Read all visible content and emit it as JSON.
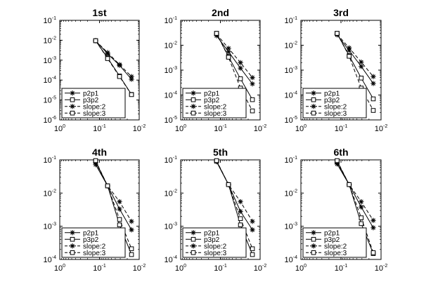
{
  "chart_data": [
    {
      "type": "line",
      "title": "1st",
      "xscale": "log",
      "yscale": "log",
      "xlim": [
        1,
        0.01
      ],
      "ylim": [
        1e-06,
        0.1
      ],
      "xticks": [
        {
          "base": "10",
          "exp": "0"
        },
        {
          "base": "10",
          "exp": "-1"
        },
        {
          "base": "10",
          "exp": "-2"
        }
      ],
      "yticks": [
        {
          "base": "10",
          "exp": "-6"
        },
        {
          "base": "10",
          "exp": "-5"
        },
        {
          "base": "10",
          "exp": "-4"
        },
        {
          "base": "10",
          "exp": "-3"
        },
        {
          "base": "10",
          "exp": "-2"
        },
        {
          "base": "10",
          "exp": "-1"
        }
      ],
      "legend_position": "bottom-left",
      "series": [
        {
          "name": "p2p1",
          "marker": "asterisk",
          "dash": "solid",
          "x": [
            0.125,
            0.0625,
            0.03125,
            0.015625
          ],
          "y": [
            0.0095,
            0.0021,
            0.00055,
            0.00011
          ]
        },
        {
          "name": "p3p2",
          "marker": "square",
          "dash": "solid",
          "x": [
            0.125,
            0.0625,
            0.03125,
            0.015625
          ],
          "y": [
            0.0095,
            0.0013,
            0.00016,
            1.9e-05
          ]
        },
        {
          "name": "slope:2",
          "marker": "asterisk",
          "dash": "dashed",
          "x": [
            0.125,
            0.0625,
            0.03125,
            0.015625
          ],
          "y": [
            0.0095,
            0.0024,
            0.0006,
            0.00015
          ]
        },
        {
          "name": "slope:3",
          "marker": "square",
          "dash": "dashed",
          "x": [
            0.125,
            0.0625,
            0.03125,
            0.015625
          ],
          "y": [
            0.0095,
            0.0012,
            0.00015,
            1.86e-05
          ]
        }
      ]
    },
    {
      "type": "line",
      "title": "2nd",
      "xscale": "log",
      "yscale": "log",
      "xlim": [
        1,
        0.01
      ],
      "ylim": [
        1e-05,
        0.1
      ],
      "xticks": [
        {
          "base": "10",
          "exp": "0"
        },
        {
          "base": "10",
          "exp": "-1"
        },
        {
          "base": "10",
          "exp": "-2"
        }
      ],
      "yticks": [
        {
          "base": "10",
          "exp": "-5"
        },
        {
          "base": "10",
          "exp": "-4"
        },
        {
          "base": "10",
          "exp": "-3"
        },
        {
          "base": "10",
          "exp": "-2"
        },
        {
          "base": "10",
          "exp": "-1"
        }
      ],
      "legend_position": "bottom-left",
      "series": [
        {
          "name": "p2p1",
          "marker": "asterisk",
          "dash": "solid",
          "x": [
            0.125,
            0.0625,
            0.03125,
            0.015625
          ],
          "y": [
            0.024,
            0.0055,
            0.0012,
            0.00028
          ]
        },
        {
          "name": "p3p2",
          "marker": "square",
          "dash": "solid",
          "x": [
            0.125,
            0.0625,
            0.03125,
            0.015625
          ],
          "y": [
            0.03,
            0.0035,
            0.00045,
            6.5e-05
          ]
        },
        {
          "name": "slope:2",
          "marker": "asterisk",
          "dash": "dashed",
          "x": [
            0.125,
            0.0625,
            0.03125,
            0.015625
          ],
          "y": [
            0.028,
            0.0075,
            0.002,
            0.0005
          ]
        },
        {
          "name": "slope:3",
          "marker": "square",
          "dash": "dashed",
          "x": [
            0.125,
            0.0625,
            0.03125,
            0.015625
          ],
          "y": [
            0.03,
            0.0033,
            0.00019,
            2.3e-05
          ]
        }
      ]
    },
    {
      "type": "line",
      "title": "3rd",
      "xscale": "log",
      "yscale": "log",
      "xlim": [
        1,
        0.01
      ],
      "ylim": [
        1e-05,
        0.1
      ],
      "xticks": [
        {
          "base": "10",
          "exp": "0"
        },
        {
          "base": "10",
          "exp": "-1"
        },
        {
          "base": "10",
          "exp": "-2"
        }
      ],
      "yticks": [
        {
          "base": "10",
          "exp": "-5"
        },
        {
          "base": "10",
          "exp": "-4"
        },
        {
          "base": "10",
          "exp": "-3"
        },
        {
          "base": "10",
          "exp": "-2"
        },
        {
          "base": "10",
          "exp": "-1"
        }
      ],
      "legend_position": "bottom-left",
      "series": [
        {
          "name": "p2p1",
          "marker": "asterisk",
          "dash": "solid",
          "x": [
            0.125,
            0.0625,
            0.03125,
            0.015625
          ],
          "y": [
            0.026,
            0.0062,
            0.0014,
            0.00029
          ]
        },
        {
          "name": "p3p2",
          "marker": "square",
          "dash": "solid",
          "x": [
            0.125,
            0.0625,
            0.03125,
            0.015625
          ],
          "y": [
            0.03,
            0.0038,
            0.00048,
            7e-05
          ]
        },
        {
          "name": "slope:2",
          "marker": "asterisk",
          "dash": "dashed",
          "x": [
            0.125,
            0.0625,
            0.03125,
            0.015625
          ],
          "y": [
            0.028,
            0.0078,
            0.0021,
            0.00055
          ]
        },
        {
          "name": "slope:3",
          "marker": "square",
          "dash": "dashed",
          "x": [
            0.125,
            0.0625,
            0.03125,
            0.015625
          ],
          "y": [
            0.03,
            0.0036,
            0.00019,
            2.4e-05
          ]
        }
      ]
    },
    {
      "type": "line",
      "title": "4th",
      "xscale": "log",
      "yscale": "log",
      "xlim": [
        1,
        0.01
      ],
      "ylim": [
        0.0001,
        0.1
      ],
      "xticks": [
        {
          "base": "10",
          "exp": "0"
        },
        {
          "base": "10",
          "exp": "-1"
        },
        {
          "base": "10",
          "exp": "-2"
        }
      ],
      "yticks": [
        {
          "base": "10",
          "exp": "-4"
        },
        {
          "base": "10",
          "exp": "-3"
        },
        {
          "base": "10",
          "exp": "-2"
        },
        {
          "base": "10",
          "exp": "-1"
        }
      ],
      "legend_position": "bottom-left",
      "series": [
        {
          "name": "p2p1",
          "marker": "asterisk",
          "dash": "solid",
          "x": [
            0.125,
            0.0625,
            0.03125,
            0.015625
          ],
          "y": [
            0.072,
            0.0165,
            0.0033,
            0.00078
          ]
        },
        {
          "name": "p3p2",
          "marker": "square",
          "dash": "solid",
          "x": [
            0.125,
            0.0625,
            0.03125,
            0.015625
          ],
          "y": [
            0.09,
            0.0165,
            0.0011,
            0.00014
          ]
        },
        {
          "name": "slope:2",
          "marker": "asterisk",
          "dash": "dashed",
          "x": [
            0.125,
            0.0625,
            0.03125,
            0.015625
          ],
          "y": [
            0.085,
            0.0165,
            0.0055,
            0.0014
          ]
        },
        {
          "name": "slope:3",
          "marker": "square",
          "dash": "dashed",
          "x": [
            0.125,
            0.0625,
            0.03125,
            0.015625
          ],
          "y": [
            0.095,
            0.0165,
            0.0016,
            0.00021
          ]
        }
      ]
    },
    {
      "type": "line",
      "title": "5th",
      "xscale": "log",
      "yscale": "log",
      "xlim": [
        1,
        0.01
      ],
      "ylim": [
        0.0001,
        0.1
      ],
      "xticks": [
        {
          "base": "10",
          "exp": "0"
        },
        {
          "base": "10",
          "exp": "-1"
        },
        {
          "base": "10",
          "exp": "-2"
        }
      ],
      "yticks": [
        {
          "base": "10",
          "exp": "-4"
        },
        {
          "base": "10",
          "exp": "-3"
        },
        {
          "base": "10",
          "exp": "-2"
        },
        {
          "base": "10",
          "exp": "-1"
        }
      ],
      "legend_position": "bottom-left",
      "series": [
        {
          "name": "p2p1",
          "marker": "asterisk",
          "dash": "solid",
          "x": [
            0.125,
            0.0625,
            0.03125,
            0.015625
          ],
          "y": [
            0.088,
            0.018,
            0.0028,
            0.00078
          ]
        },
        {
          "name": "p3p2",
          "marker": "square",
          "dash": "solid",
          "x": [
            0.125,
            0.0625,
            0.03125,
            0.015625
          ],
          "y": [
            0.092,
            0.018,
            0.0011,
            0.00014
          ]
        },
        {
          "name": "slope:2",
          "marker": "asterisk",
          "dash": "dashed",
          "x": [
            0.125,
            0.0625,
            0.03125,
            0.015625
          ],
          "y": [
            0.09,
            0.018,
            0.0055,
            0.0014
          ]
        },
        {
          "name": "slope:3",
          "marker": "square",
          "dash": "dashed",
          "x": [
            0.125,
            0.0625,
            0.03125,
            0.015625
          ],
          "y": [
            0.095,
            0.018,
            0.0017,
            0.00021
          ]
        }
      ]
    },
    {
      "type": "line",
      "title": "6th",
      "xscale": "log",
      "yscale": "log",
      "xlim": [
        1,
        0.01
      ],
      "ylim": [
        0.0001,
        0.1
      ],
      "xticks": [
        {
          "base": "10",
          "exp": "0"
        },
        {
          "base": "10",
          "exp": "-1"
        },
        {
          "base": "10",
          "exp": "-2"
        }
      ],
      "yticks": [
        {
          "base": "10",
          "exp": "-4"
        },
        {
          "base": "10",
          "exp": "-3"
        },
        {
          "base": "10",
          "exp": "-2"
        },
        {
          "base": "10",
          "exp": "-1"
        }
      ],
      "legend_position": "bottom-left",
      "series": [
        {
          "name": "p2p1",
          "marker": "asterisk",
          "dash": "solid",
          "x": [
            0.125,
            0.0625,
            0.03125,
            0.015625
          ],
          "y": [
            0.075,
            0.018,
            0.0038,
            0.0009
          ]
        },
        {
          "name": "p3p2",
          "marker": "square",
          "dash": "solid",
          "x": [
            0.125,
            0.0625,
            0.03125,
            0.015625
          ],
          "y": [
            0.09,
            0.018,
            0.0012,
            0.00015
          ]
        },
        {
          "name": "slope:2",
          "marker": "asterisk",
          "dash": "dashed",
          "x": [
            0.125,
            0.0625,
            0.03125,
            0.015625
          ],
          "y": [
            0.085,
            0.018,
            0.0055,
            0.0015
          ]
        },
        {
          "name": "slope:3",
          "marker": "square",
          "dash": "dashed",
          "x": [
            0.125,
            0.0625,
            0.03125,
            0.015625
          ],
          "y": [
            0.095,
            0.018,
            0.0018,
            0.00016
          ]
        }
      ]
    }
  ]
}
